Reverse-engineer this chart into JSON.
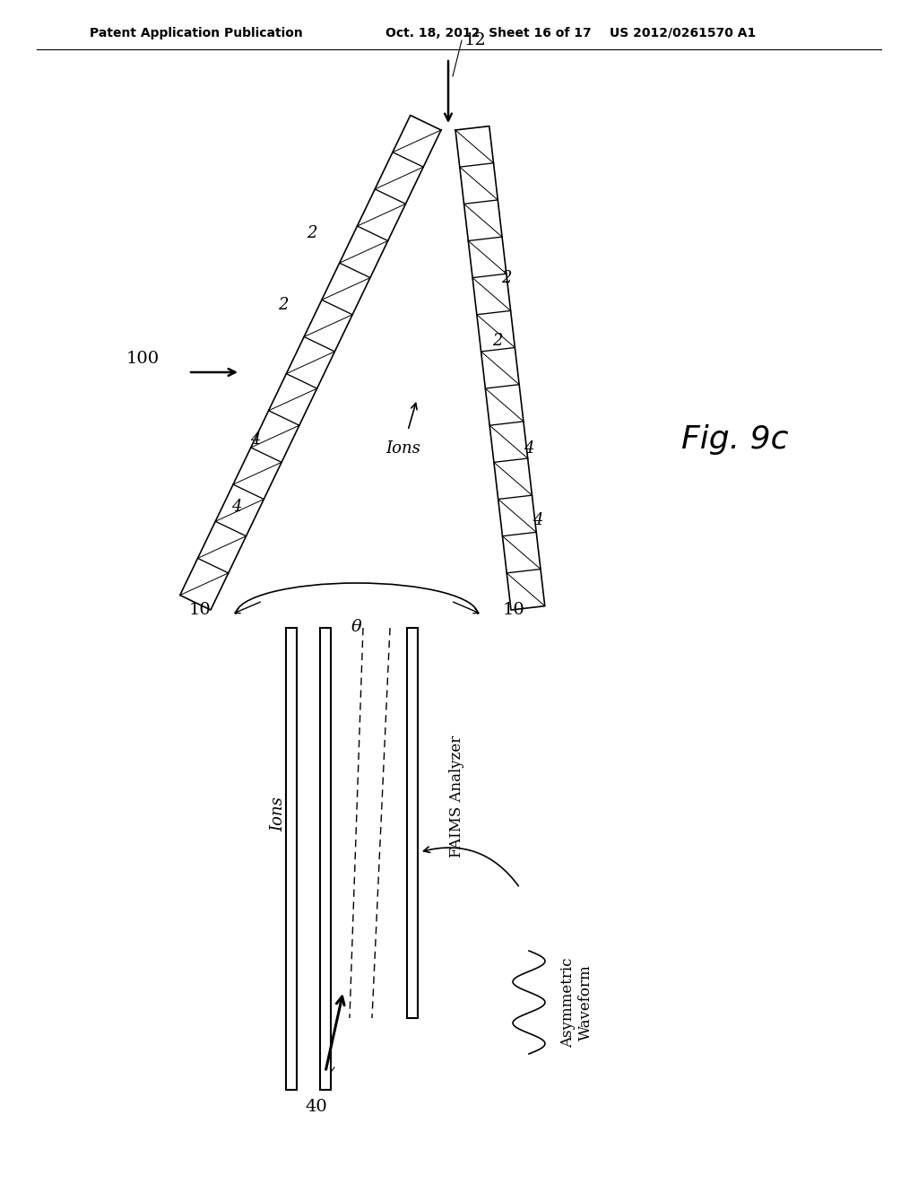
{
  "bg_color": "#ffffff",
  "header_left": "Patent Application Publication",
  "header_mid": "Oct. 18, 2012  Sheet 16 of 17",
  "header_right": "US 2012/0261570 A1",
  "fig_label": "Fig. 9c"
}
